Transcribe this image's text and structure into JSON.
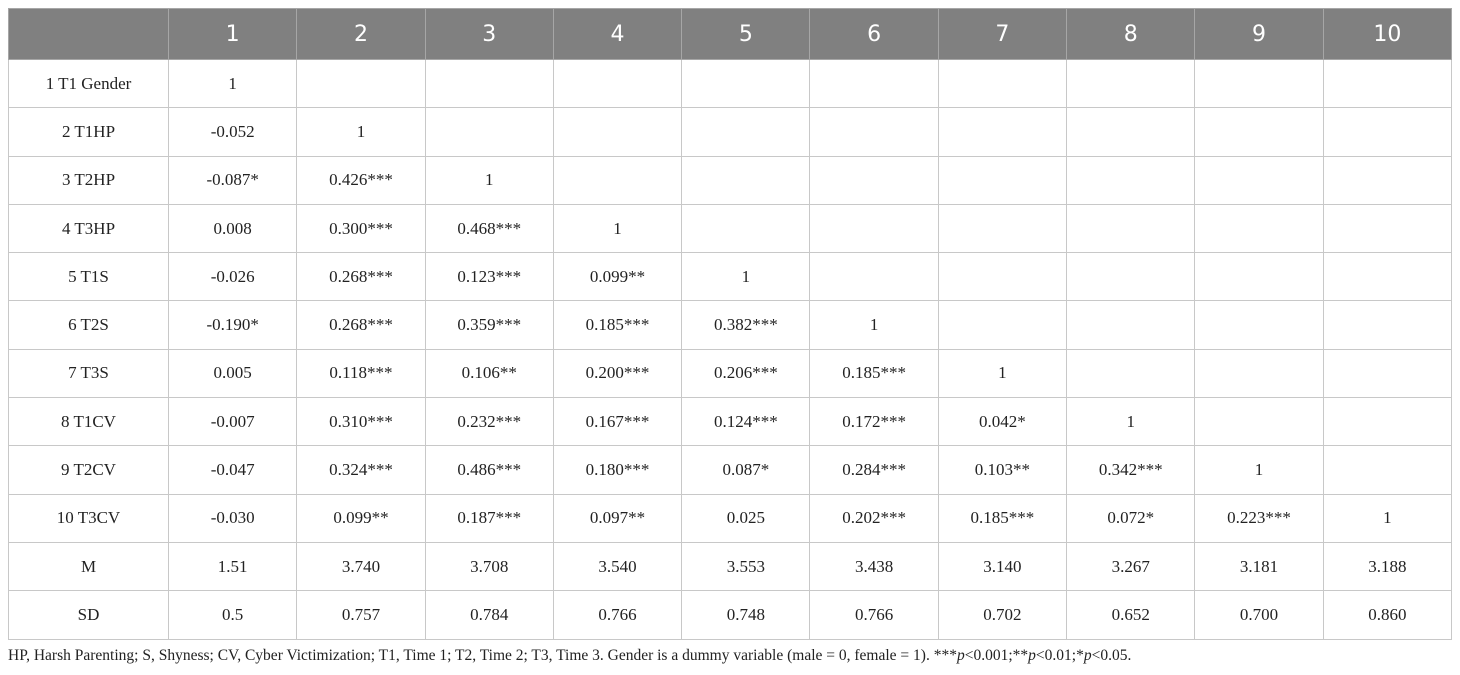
{
  "table": {
    "columns": [
      "1",
      "2",
      "3",
      "4",
      "5",
      "6",
      "7",
      "8",
      "9",
      "10"
    ],
    "rows": [
      {
        "label": "1 T1 Gender",
        "cells": [
          "1"
        ]
      },
      {
        "label": "2 T1HP",
        "cells": [
          "-0.052",
          "1"
        ]
      },
      {
        "label": "3 T2HP",
        "cells": [
          "-0.087*",
          "0.426***",
          "1"
        ]
      },
      {
        "label": "4 T3HP",
        "cells": [
          "0.008",
          "0.300***",
          "0.468***",
          "1"
        ]
      },
      {
        "label": "5 T1S",
        "cells": [
          "-0.026",
          "0.268***",
          "0.123***",
          "0.099**",
          "1"
        ]
      },
      {
        "label": "6 T2S",
        "cells": [
          "-0.190*",
          "0.268***",
          "0.359***",
          "0.185***",
          "0.382***",
          "1"
        ]
      },
      {
        "label": "7 T3S",
        "cells": [
          "0.005",
          "0.118***",
          "0.106**",
          "0.200***",
          "0.206***",
          "0.185***",
          "1"
        ]
      },
      {
        "label": "8 T1CV",
        "cells": [
          "-0.007",
          "0.310***",
          "0.232***",
          "0.167***",
          "0.124***",
          "0.172***",
          "0.042*",
          "1"
        ]
      },
      {
        "label": "9 T2CV",
        "cells": [
          "-0.047",
          "0.324***",
          "0.486***",
          "0.180***",
          "0.087*",
          "0.284***",
          "0.103**",
          "0.342***",
          "1"
        ]
      },
      {
        "label": "10 T3CV",
        "cells": [
          "-0.030",
          "0.099**",
          "0.187***",
          "0.097**",
          "0.025",
          "0.202***",
          "0.185***",
          "0.072*",
          "0.223***",
          "1"
        ]
      },
      {
        "label": "M",
        "cells": [
          "1.51",
          "3.740",
          "3.708",
          "3.540",
          "3.553",
          "3.438",
          "3.140",
          "3.267",
          "3.181",
          "3.188"
        ]
      },
      {
        "label": "SD",
        "cells": [
          "0.5",
          "0.757",
          "0.784",
          "0.766",
          "0.748",
          "0.766",
          "0.702",
          "0.652",
          "0.700",
          "0.860"
        ]
      }
    ]
  },
  "footnote": [
    "HP, Harsh Parenting; S, Shyness; CV, Cyber Victimization; T1, Time 1; T2, Time 2; T3, Time 3. Gender is a dummy variable (male = 0, female = 1). ***",
    "p",
    "<0.001;**",
    "p",
    "<0.01;*",
    "p",
    "<0.05."
  ]
}
